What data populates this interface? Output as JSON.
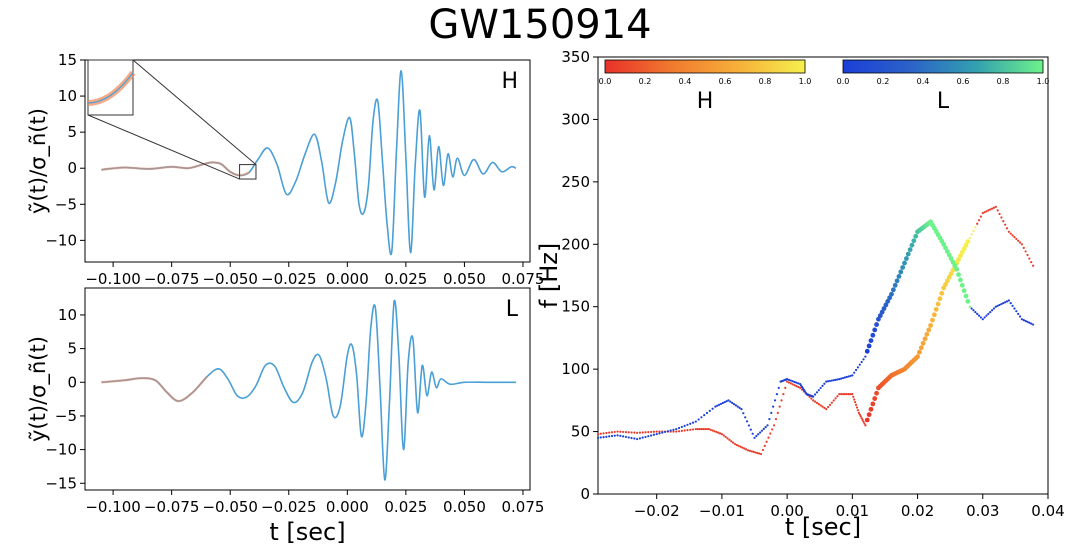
{
  "title": "GW150914",
  "chart_data": [
    {
      "type": "line",
      "panel": "top-left",
      "detector_label": "H",
      "ylabel": "ỹ(t)/σ_ñ(t)",
      "xlabel": "",
      "xlim": [
        -0.112,
        0.078
      ],
      "ylim": [
        -13,
        15
      ],
      "xticks": [
        -0.1,
        -0.075,
        -0.05,
        -0.025,
        0.0,
        0.025,
        0.05,
        0.075
      ],
      "xtick_labels": [
        "−0.100",
        "−0.075",
        "−0.050",
        "−0.025",
        "0.000",
        "0.025",
        "0.050",
        "0.075"
      ],
      "yticks": [
        -10,
        -5,
        0,
        5,
        10,
        15
      ],
      "ytick_labels": [
        "−10",
        "−5",
        "0",
        "5",
        "10",
        "15"
      ],
      "series": [
        {
          "color": "#4a9fd5",
          "x": [
            -0.105,
            -0.095,
            -0.085,
            -0.075,
            -0.068,
            -0.062,
            -0.058,
            -0.054,
            -0.05,
            -0.046,
            -0.042,
            -0.038,
            -0.034,
            -0.03,
            -0.026,
            -0.022,
            -0.018,
            -0.014,
            -0.011,
            -0.008,
            -0.005,
            -0.002,
            0.001,
            0.003,
            0.005,
            0.007,
            0.009,
            0.011,
            0.013,
            0.015,
            0.017,
            0.019,
            0.021,
            0.023,
            0.025,
            0.027,
            0.029,
            0.031,
            0.033,
            0.035,
            0.037,
            0.039,
            0.041,
            0.043,
            0.045,
            0.047,
            0.05,
            0.054,
            0.058,
            0.062,
            0.066,
            0.07,
            0.072
          ],
          "values": [
            -0.2,
            0.1,
            -0.1,
            0.2,
            0.0,
            0.5,
            0.8,
            0.6,
            -0.5,
            -1.0,
            -0.6,
            1.3,
            2.8,
            0.5,
            -3.6,
            -1.8,
            2.0,
            4.7,
            1.0,
            -4.8,
            -2.0,
            3.8,
            7.0,
            2.0,
            -5.0,
            -6.2,
            -2.5,
            6.6,
            9.3,
            1.0,
            -7.8,
            -11.5,
            2.5,
            13.5,
            1.5,
            -11.7,
            0.5,
            8.0,
            -4.0,
            4.5,
            -3.0,
            3.0,
            -2.4,
            2.0,
            -1.2,
            1.4,
            -1.0,
            1.2,
            -0.8,
            0.8,
            -0.5,
            0.2,
            0.0
          ]
        },
        {
          "color": "#ef8d62",
          "x": [
            -0.105,
            -0.095,
            -0.085,
            -0.075,
            -0.068,
            -0.062,
            -0.058,
            -0.054,
            -0.05,
            -0.046,
            -0.042
          ],
          "values": [
            -0.2,
            0.1,
            -0.1,
            0.2,
            0.0,
            0.5,
            0.8,
            0.6,
            -0.5,
            -1.0,
            -0.6
          ]
        }
      ],
      "inset": {
        "x_range": [
          -0.046,
          -0.039
        ],
        "y_range": [
          -1.5,
          0.5
        ]
      }
    },
    {
      "type": "line",
      "panel": "bottom-left",
      "detector_label": "L",
      "ylabel": "ỹ(t)/σ_ñ(t)",
      "xlabel": "t [sec]",
      "xlim": [
        -0.112,
        0.078
      ],
      "ylim": [
        -16,
        14
      ],
      "xticks": [
        -0.1,
        -0.075,
        -0.05,
        -0.025,
        0.0,
        0.025,
        0.05,
        0.075
      ],
      "xtick_labels": [
        "−0.100",
        "−0.075",
        "−0.050",
        "−0.025",
        "0.000",
        "0.025",
        "0.050",
        "0.075"
      ],
      "yticks": [
        -15,
        -10,
        -5,
        0,
        5,
        10
      ],
      "ytick_labels": [
        "−15",
        "−10",
        "−5",
        "0",
        "5",
        "10"
      ],
      "series": [
        {
          "color": "#4a9fd5",
          "x": [
            -0.105,
            -0.095,
            -0.088,
            -0.082,
            -0.077,
            -0.072,
            -0.066,
            -0.06,
            -0.055,
            -0.051,
            -0.047,
            -0.043,
            -0.039,
            -0.035,
            -0.031,
            -0.027,
            -0.023,
            -0.019,
            -0.015,
            -0.012,
            -0.009,
            -0.006,
            -0.003,
            0.0,
            0.002,
            0.004,
            0.006,
            0.008,
            0.01,
            0.012,
            0.014,
            0.016,
            0.018,
            0.02,
            0.022,
            0.024,
            0.026,
            0.028,
            0.03,
            0.032,
            0.034,
            0.036,
            0.038,
            0.04,
            0.044,
            0.05,
            0.06,
            0.072
          ],
          "values": [
            0.0,
            0.3,
            0.6,
            0.3,
            -1.5,
            -2.8,
            -1.5,
            0.8,
            2.0,
            0.5,
            -2.0,
            -2.2,
            -0.5,
            2.5,
            2.4,
            -0.8,
            -3.0,
            -1.5,
            3.0,
            4.0,
            0.5,
            -5.0,
            -3.5,
            4.0,
            5.5,
            1.0,
            -8.0,
            -3.0,
            8.0,
            11.0,
            -1.0,
            -14.5,
            -3.0,
            12.0,
            4.0,
            -10.0,
            3.0,
            6.5,
            -4.5,
            2.5,
            -2.0,
            1.5,
            -0.8,
            0.5,
            -0.3,
            0.0,
            0.0,
            0.0
          ]
        },
        {
          "color": "#ef8d62",
          "x": [
            -0.105,
            -0.095,
            -0.088,
            -0.082,
            -0.077,
            -0.072,
            -0.066,
            -0.06
          ],
          "values": [
            0.0,
            0.3,
            0.6,
            0.3,
            -1.5,
            -2.8,
            -1.5,
            0.8
          ]
        }
      ]
    },
    {
      "type": "scatter",
      "panel": "right",
      "xlabel": "t [sec]",
      "ylabel": "f [Hz]",
      "xlim": [
        -0.029,
        0.04
      ],
      "ylim": [
        0,
        350
      ],
      "xticks": [
        -0.02,
        -0.01,
        0.0,
        0.01,
        0.02,
        0.03,
        0.04
      ],
      "xtick_labels": [
        "−0.02",
        "−0.01",
        "0.00",
        "0.01",
        "0.02",
        "0.03",
        "0.04"
      ],
      "yticks": [
        0,
        50,
        100,
        150,
        200,
        250,
        300,
        350
      ],
      "ytick_labels": [
        "0",
        "50",
        "100",
        "150",
        "200",
        "250",
        "300",
        "350"
      ],
      "series": [
        {
          "name": "H",
          "colormap": "red-yellow",
          "x": [
            -0.029,
            -0.026,
            -0.023,
            -0.02,
            -0.017,
            -0.014,
            -0.012,
            -0.01,
            -0.008,
            -0.006,
            -0.004,
            -0.002,
            0.0,
            0.002,
            0.004,
            0.006,
            0.008,
            0.01,
            0.011,
            0.012,
            0.014,
            0.016,
            0.018,
            0.02,
            0.022,
            0.024,
            0.026,
            0.028,
            0.03,
            0.032,
            0.034,
            0.036,
            0.038
          ],
          "values": [
            48,
            50,
            49,
            50,
            50,
            52,
            52,
            48,
            40,
            35,
            32,
            55,
            90,
            85,
            75,
            68,
            80,
            80,
            65,
            55,
            85,
            95,
            100,
            110,
            135,
            165,
            185,
            205,
            225,
            230,
            210,
            200,
            180
          ]
        },
        {
          "name": "L",
          "colormap": "blue-green",
          "x": [
            -0.029,
            -0.026,
            -0.023,
            -0.02,
            -0.017,
            -0.014,
            -0.011,
            -0.009,
            -0.007,
            -0.005,
            -0.003,
            -0.001,
            0.0,
            0.002,
            0.003,
            0.004,
            0.006,
            0.008,
            0.01,
            0.012,
            0.014,
            0.016,
            0.018,
            0.02,
            0.022,
            0.024,
            0.026,
            0.028,
            0.03,
            0.032,
            0.034,
            0.036,
            0.038
          ],
          "values": [
            45,
            47,
            44,
            48,
            52,
            58,
            70,
            75,
            68,
            45,
            55,
            90,
            92,
            88,
            80,
            78,
            90,
            92,
            95,
            110,
            140,
            160,
            185,
            210,
            218,
            200,
            180,
            150,
            140,
            150,
            155,
            140,
            135
          ]
        }
      ],
      "colorbars": [
        {
          "label": "H",
          "ticks": [
            "0.0",
            "0.2",
            "0.4",
            "0.6",
            "0.8",
            "1.0"
          ],
          "colors": [
            "#e8312a",
            "#f07a2e",
            "#f6b03a",
            "#f5f04c"
          ]
        },
        {
          "label": "L",
          "ticks": [
            "0.0",
            "0.2",
            "0.4",
            "0.6",
            "0.8",
            "1.0"
          ],
          "colors": [
            "#1c3fd8",
            "#2b62c8",
            "#33a0b0",
            "#6df28a"
          ]
        }
      ]
    }
  ]
}
